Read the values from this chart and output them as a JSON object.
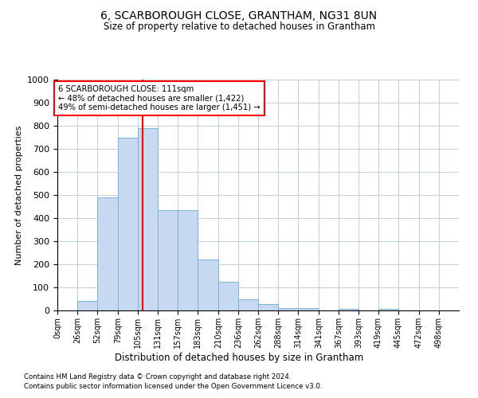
{
  "title1": "6, SCARBOROUGH CLOSE, GRANTHAM, NG31 8UN",
  "title2": "Size of property relative to detached houses in Grantham",
  "xlabel": "Distribution of detached houses by size in Grantham",
  "ylabel": "Number of detached properties",
  "bin_edges": [
    0,
    26,
    52,
    79,
    105,
    131,
    157,
    183,
    210,
    236,
    262,
    288,
    314,
    341,
    367,
    393,
    419,
    445,
    472,
    498,
    524
  ],
  "bar_heights": [
    0,
    40,
    490,
    750,
    790,
    435,
    435,
    220,
    125,
    50,
    27,
    12,
    12,
    0,
    8,
    0,
    8,
    0,
    0,
    0
  ],
  "bar_color": "#c6d9f0",
  "bar_edge_color": "#7ab4d4",
  "red_line_x": 111,
  "ylim": [
    0,
    1000
  ],
  "yticks": [
    0,
    100,
    200,
    300,
    400,
    500,
    600,
    700,
    800,
    900,
    1000
  ],
  "annotation_text": "6 SCARBOROUGH CLOSE: 111sqm\n← 48% of detached houses are smaller (1,422)\n49% of semi-detached houses are larger (1,451) →",
  "footnote1": "Contains HM Land Registry data © Crown copyright and database right 2024.",
  "footnote2": "Contains public sector information licensed under the Open Government Licence v3.0.",
  "background_color": "#ffffff",
  "grid_color": "#c8d0dc"
}
